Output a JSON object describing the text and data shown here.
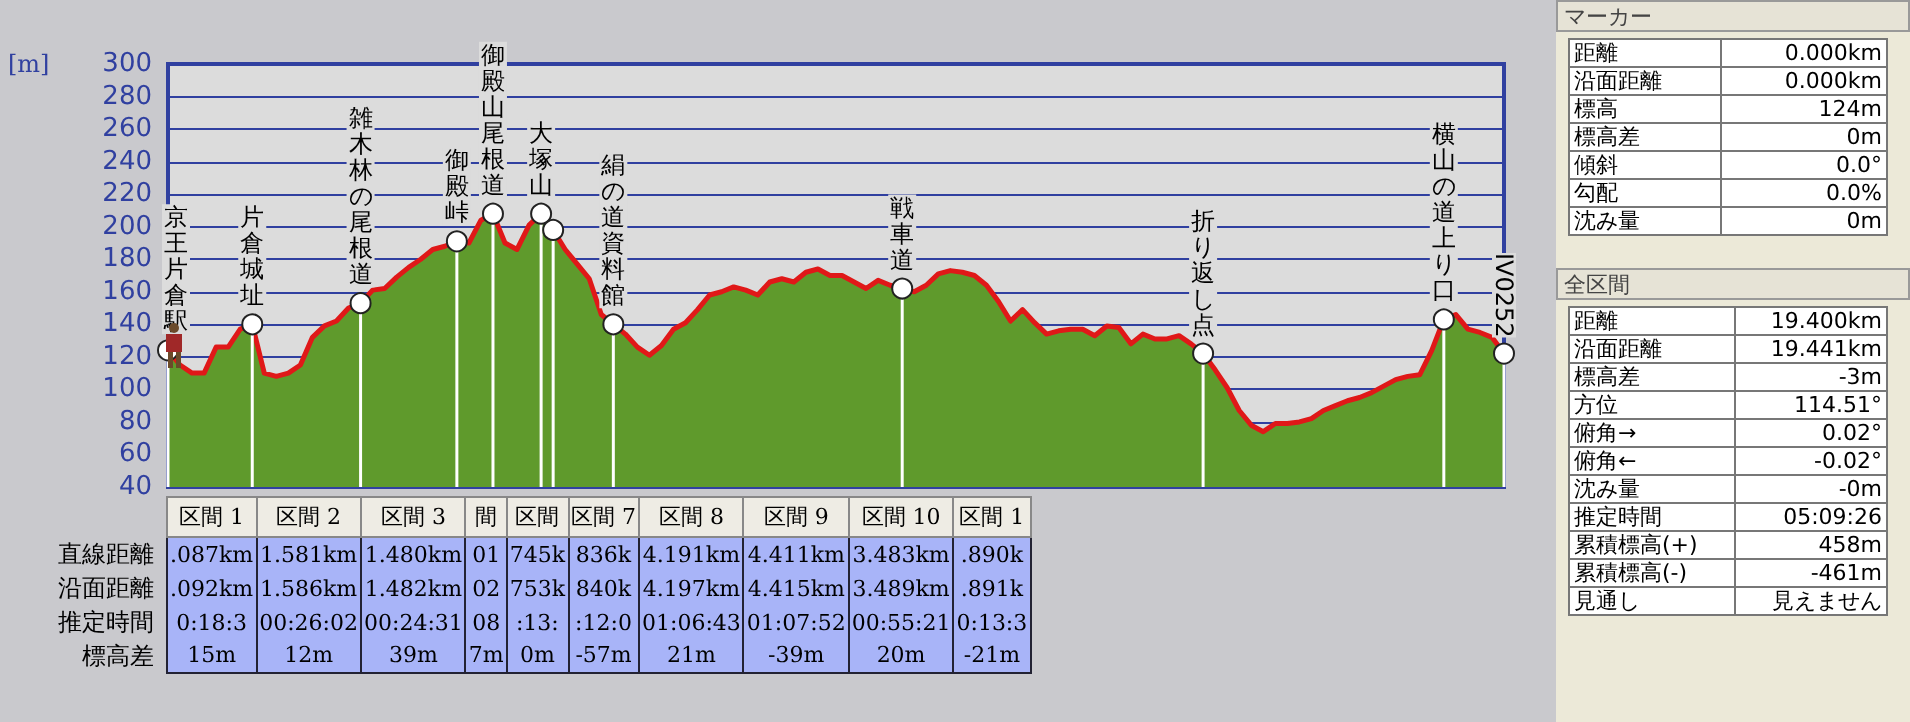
{
  "chart_data": [
    {
      "type": "area",
      "ylabel": "[m]",
      "categories": [
        null,
        null,
        null,
        null,
        null,
        null,
        null,
        null,
        null,
        null,
        null,
        null,
        null,
        null,
        null,
        null,
        null,
        null,
        null,
        null,
        null,
        null,
        null,
        null,
        null,
        null,
        null,
        null,
        null,
        null,
        null,
        null,
        null,
        null,
        null,
        null,
        null,
        null,
        null,
        null,
        null,
        null,
        null,
        null,
        null,
        null,
        null,
        null,
        null,
        null,
        null,
        null,
        null,
        null,
        null,
        null,
        null,
        null,
        null,
        null,
        null,
        null,
        null,
        null,
        null,
        null,
        null,
        null,
        null,
        null,
        null,
        null,
        null,
        null,
        null,
        null,
        null,
        null,
        null,
        null,
        null,
        null,
        null,
        null,
        null,
        null,
        null,
        null,
        null,
        null,
        null,
        null,
        null,
        null,
        null,
        null,
        null,
        null,
        null,
        null,
        null,
        null,
        null,
        null,
        null,
        null,
        null,
        null,
        null,
        null,
        null,
        null
      ],
      "series": [
        {
          "type": "area",
          "color": "#5f9a2c",
          "values": [
            124,
            115,
            110,
            110,
            126,
            126,
            137,
            140,
            110,
            108,
            110,
            115,
            132,
            139,
            142,
            150,
            153,
            161,
            162,
            169,
            175,
            180,
            186,
            188,
            191,
            190,
            204,
            208,
            190,
            186,
            201,
            208,
            198,
            186,
            177,
            168,
            146,
            140,
            134,
            126,
            121,
            127,
            137,
            141,
            149,
            158,
            160,
            163,
            161,
            158,
            166,
            168,
            166,
            172,
            174,
            170,
            170,
            166,
            162,
            167,
            164,
            162,
            160,
            164,
            171,
            173,
            172,
            170,
            164,
            154,
            142,
            149,
            141,
            134,
            136,
            137,
            137,
            133,
            139,
            138,
            128,
            134,
            131,
            131,
            133,
            128,
            122,
            112,
            101,
            87,
            78,
            74,
            79,
            79,
            80,
            82,
            87,
            90,
            93,
            95,
            98,
            102,
            106,
            108,
            109,
            124,
            143,
            146,
            137,
            135,
            132,
            122
          ]
        },
        {
          "type": "line",
          "color": "#e01818",
          "values": [
            124,
            115,
            110,
            110,
            126,
            126,
            137,
            140,
            110,
            108,
            110,
            115,
            132,
            139,
            142,
            150,
            153,
            161,
            162,
            169,
            175,
            180,
            186,
            188,
            191,
            190,
            204,
            208,
            190,
            186,
            201,
            208,
            198,
            186,
            177,
            168,
            146,
            140,
            134,
            126,
            121,
            127,
            137,
            141,
            149,
            158,
            160,
            163,
            161,
            158,
            166,
            168,
            166,
            172,
            174,
            170,
            170,
            166,
            162,
            167,
            164,
            162,
            160,
            164,
            171,
            173,
            172,
            170,
            164,
            154,
            142,
            149,
            141,
            134,
            136,
            137,
            137,
            133,
            139,
            138,
            128,
            134,
            131,
            131,
            133,
            128,
            122,
            112,
            101,
            87,
            78,
            74,
            79,
            79,
            80,
            82,
            87,
            90,
            93,
            95,
            98,
            102,
            106,
            108,
            109,
            124,
            143,
            146,
            137,
            135,
            132,
            122
          ]
        },
        {
          "type": "scatter",
          "color": "#ffffff",
          "marker": "circle",
          "values": [
            124,
            null,
            null,
            null,
            null,
            null,
            null,
            140,
            null,
            null,
            null,
            null,
            null,
            null,
            null,
            null,
            153,
            null,
            null,
            null,
            null,
            null,
            null,
            null,
            191,
            null,
            null,
            208,
            null,
            null,
            null,
            208,
            198,
            null,
            null,
            null,
            null,
            140,
            null,
            null,
            null,
            null,
            null,
            null,
            null,
            null,
            null,
            null,
            null,
            null,
            null,
            null,
            null,
            null,
            null,
            null,
            null,
            null,
            null,
            null,
            null,
            162,
            null,
            null,
            null,
            null,
            null,
            null,
            null,
            null,
            null,
            null,
            null,
            null,
            null,
            null,
            null,
            null,
            null,
            null,
            null,
            null,
            null,
            null,
            null,
            null,
            122,
            null,
            null,
            null,
            null,
            null,
            null,
            null,
            null,
            null,
            null,
            null,
            null,
            null,
            null,
            null,
            null,
            null,
            null,
            null,
            143,
            null,
            null,
            null,
            null,
            122
          ],
          "value_labels": [
            "京王片倉駅",
            null,
            null,
            null,
            null,
            null,
            null,
            "片倉城址",
            null,
            null,
            null,
            null,
            null,
            null,
            null,
            null,
            "雑木林の尾根道",
            null,
            null,
            null,
            null,
            null,
            null,
            null,
            "御殿峠",
            null,
            null,
            "御殿山尾根道",
            null,
            null,
            null,
            "大塚山",
            null,
            null,
            null,
            null,
            null,
            "絹の道資料館",
            null,
            null,
            null,
            null,
            null,
            null,
            null,
            null,
            null,
            null,
            null,
            null,
            null,
            null,
            null,
            null,
            null,
            null,
            null,
            null,
            null,
            null,
            null,
            "戦車道",
            null,
            null,
            null,
            null,
            null,
            null,
            null,
            null,
            null,
            null,
            null,
            null,
            null,
            null,
            null,
            null,
            null,
            null,
            null,
            null,
            null,
            null,
            null,
            null,
            "折り返し点",
            null,
            null,
            null,
            null,
            null,
            null,
            null,
            null,
            null,
            null,
            null,
            null,
            null,
            null,
            null,
            null,
            null,
            null,
            null,
            "横山の道上り口",
            null,
            null,
            null,
            null,
            "IV0252"
          ]
        }
      ],
      "ylim": [
        40,
        300
      ],
      "yticks": [
        40,
        60,
        80,
        100,
        120,
        140,
        160,
        180,
        200,
        220,
        240,
        260,
        280,
        300
      ],
      "grid": "y",
      "tick_labels": "y"
    },
    {
      "type": "other",
      "categories": [
        "区間 1",
        "区間 2",
        "区間 3",
        "間",
        "区間",
        "区間 7",
        "区間 8",
        "区間 9",
        "区間 10",
        "区間 1"
      ],
      "annotations": [
        "直線距離",
        ".087km",
        "1.581km",
        "1.480km",
        "01",
        "745k",
        "836k",
        "4.191km",
        "4.411km",
        "3.483km",
        ".890k",
        "沿面距離",
        ".092km",
        "1.586km",
        "1.482km",
        "02",
        "753k",
        "840k",
        "4.197km",
        "4.415km",
        "3.489km",
        ".891k",
        "推定時間",
        "0:18:3",
        "00:26:02",
        "00:24:31",
        "08",
        ":13:",
        ":12:0",
        "01:06:43",
        "01:07:52",
        "00:55:21",
        "0:13:3",
        "標高差",
        "15m",
        "12m",
        "39m",
        "7m",
        "0m",
        "-57m",
        "21m",
        "-39m",
        "20m",
        "-21m"
      ]
    },
    {
      "type": "other",
      "title": "マーカー",
      "annotations": [
        "距離",
        "0.000km",
        "沿面距離",
        "0.000km",
        "標高",
        "124m",
        "標高差",
        "0m",
        "傾斜",
        "0.0°",
        "勾配",
        "0.0%",
        "沈み量",
        "0m"
      ]
    },
    {
      "type": "other",
      "title": "全区間",
      "annotations": [
        "距離",
        "19.400km",
        "沿面距離",
        "19.441km",
        "標高差",
        "-3m",
        "方位",
        "114.51°",
        "俯角→",
        "0.02°",
        "俯角←",
        "-0.02°",
        "沈み量",
        "-0m",
        "推定時間",
        "05:09:26",
        "累積標高(+)",
        "458m",
        "累積標高(-)",
        "-461m",
        "見通し",
        "見えません"
      ]
    }
  ]
}
